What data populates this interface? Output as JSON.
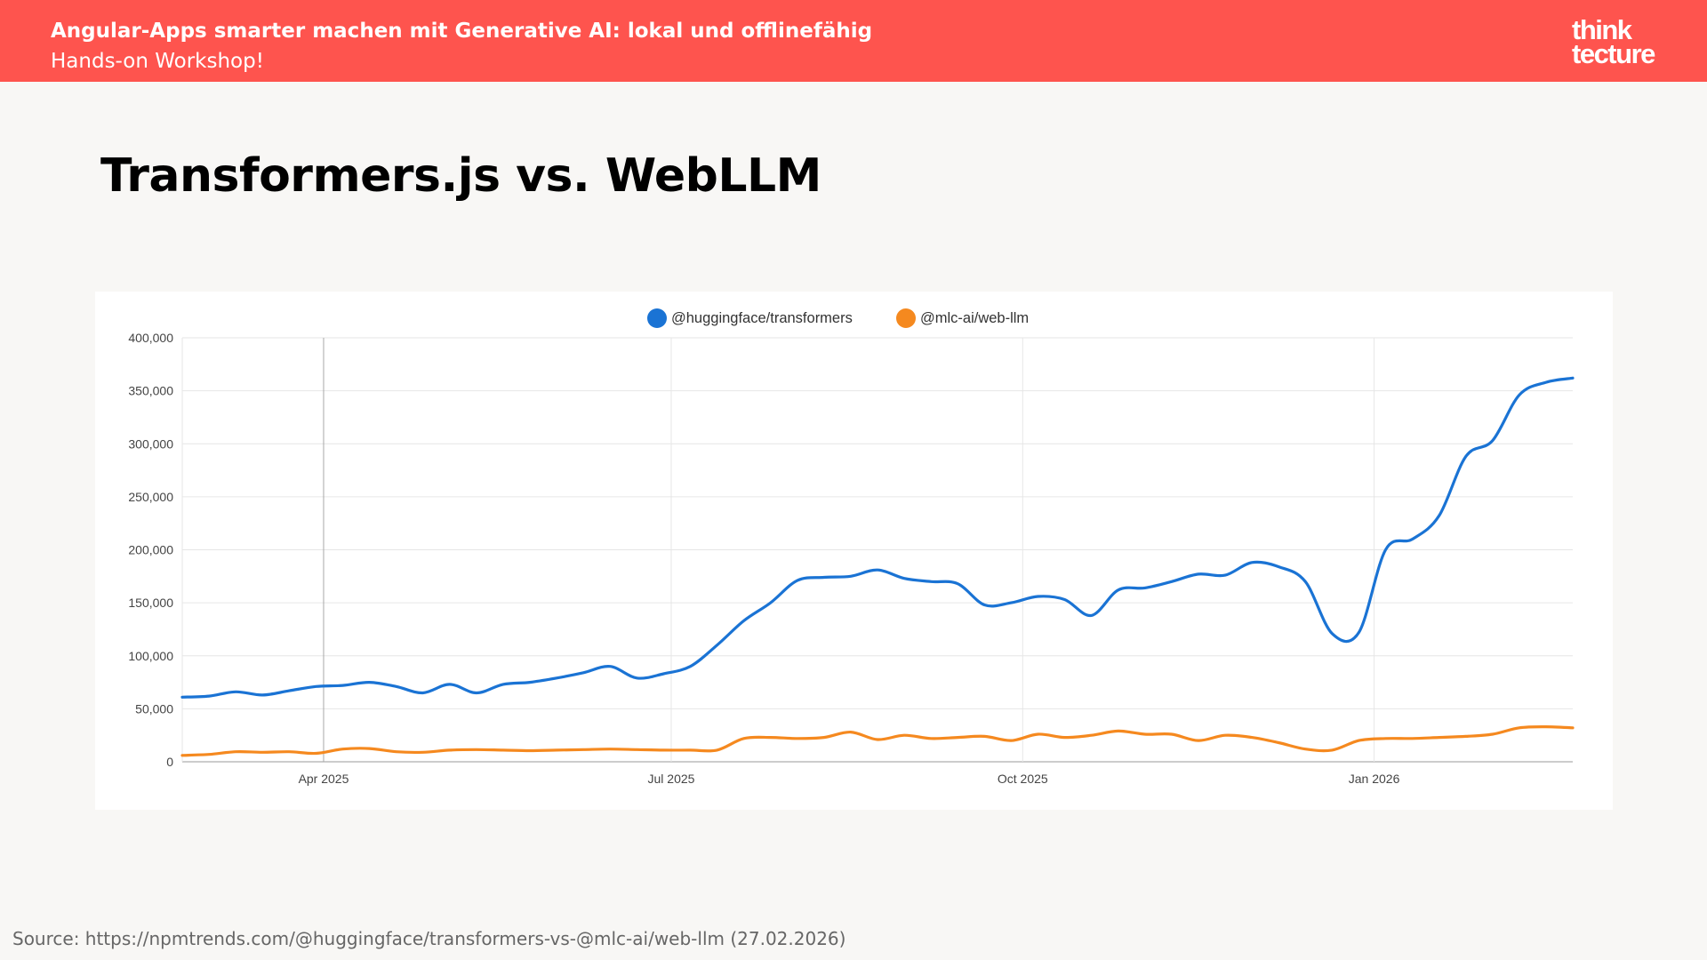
{
  "header": {
    "title": "Angular-Apps smarter machen mit Generative AI: lokal und offlinefähig",
    "subtitle": "Hands-on Workshop!",
    "logo_line1": "think",
    "logo_line2": "tecture"
  },
  "slide": {
    "title": "Transformers.js vs. WebLLM",
    "source": "Source: https://npmtrends.com/@huggingface/transformers-vs-@mlc-ai/web-llm (27.02.2026)"
  },
  "chart_data": {
    "type": "line",
    "title": "",
    "xlabel": "",
    "ylabel": "",
    "x_range": [
      "2025-02-23",
      "2026-02-22"
    ],
    "ylim": [
      0,
      400000
    ],
    "y_ticks": [
      0,
      50000,
      100000,
      150000,
      200000,
      250000,
      300000,
      350000,
      400000
    ],
    "y_tick_labels": [
      "0",
      "50,000",
      "100,000",
      "150,000",
      "200,000",
      "250,000",
      "300,000",
      "350,000",
      "400,000"
    ],
    "x_ticks": [
      {
        "date": "2025-04-01",
        "label": "Apr 2025"
      },
      {
        "date": "2025-07-01",
        "label": "Jul 2025"
      },
      {
        "date": "2025-10-01",
        "label": "Oct 2025"
      },
      {
        "date": "2026-01-01",
        "label": "Jan 2026"
      }
    ],
    "grid": true,
    "legend_position": "top-center",
    "x": [
      "2025-02-23",
      "2025-03-02",
      "2025-03-09",
      "2025-03-16",
      "2025-03-23",
      "2025-03-30",
      "2025-04-06",
      "2025-04-13",
      "2025-04-20",
      "2025-04-27",
      "2025-05-04",
      "2025-05-11",
      "2025-05-18",
      "2025-05-25",
      "2025-06-01",
      "2025-06-08",
      "2025-06-15",
      "2025-06-22",
      "2025-06-29",
      "2025-07-06",
      "2025-07-13",
      "2025-07-20",
      "2025-07-27",
      "2025-08-03",
      "2025-08-10",
      "2025-08-17",
      "2025-08-24",
      "2025-08-31",
      "2025-09-07",
      "2025-09-14",
      "2025-09-21",
      "2025-09-28",
      "2025-10-05",
      "2025-10-12",
      "2025-10-19",
      "2025-10-26",
      "2025-11-02",
      "2025-11-09",
      "2025-11-16",
      "2025-11-23",
      "2025-11-30",
      "2025-12-07",
      "2025-12-14",
      "2025-12-21",
      "2025-12-28",
      "2026-01-04",
      "2026-01-11",
      "2026-01-18",
      "2026-01-25",
      "2026-02-01",
      "2026-02-08",
      "2026-02-15",
      "2026-02-22"
    ],
    "series": [
      {
        "name": "@huggingface/transformers",
        "color": "#1a73d4",
        "values": [
          61000,
          62000,
          66000,
          63000,
          67000,
          71000,
          72000,
          75000,
          71000,
          65000,
          73000,
          65000,
          73000,
          75000,
          79000,
          84000,
          90000,
          79000,
          83000,
          90000,
          110000,
          133000,
          150000,
          171000,
          174000,
          175000,
          181000,
          173000,
          170000,
          168000,
          148000,
          150000,
          156000,
          153000,
          138000,
          162000,
          164000,
          170000,
          177000,
          176000,
          188000,
          184000,
          170000,
          121000,
          122000,
          200000,
          210000,
          232000,
          288000,
          303000,
          346000,
          358000,
          362000
        ]
      },
      {
        "name": "@mlc-ai/web-llm",
        "color": "#f5891f",
        "values": [
          6000,
          7000,
          9500,
          9000,
          9500,
          8000,
          12000,
          12500,
          9500,
          9000,
          11000,
          11500,
          11000,
          10500,
          11000,
          11500,
          12000,
          11500,
          11000,
          11000,
          11000,
          22000,
          23000,
          22000,
          23000,
          28000,
          21000,
          25000,
          22000,
          23000,
          24000,
          20000,
          26000,
          23000,
          25000,
          29000,
          26000,
          26000,
          20000,
          25000,
          23000,
          18000,
          12000,
          11000,
          20000,
          22000,
          22000,
          23000,
          24000,
          26000,
          32000,
          33000,
          32000
        ]
      }
    ]
  }
}
